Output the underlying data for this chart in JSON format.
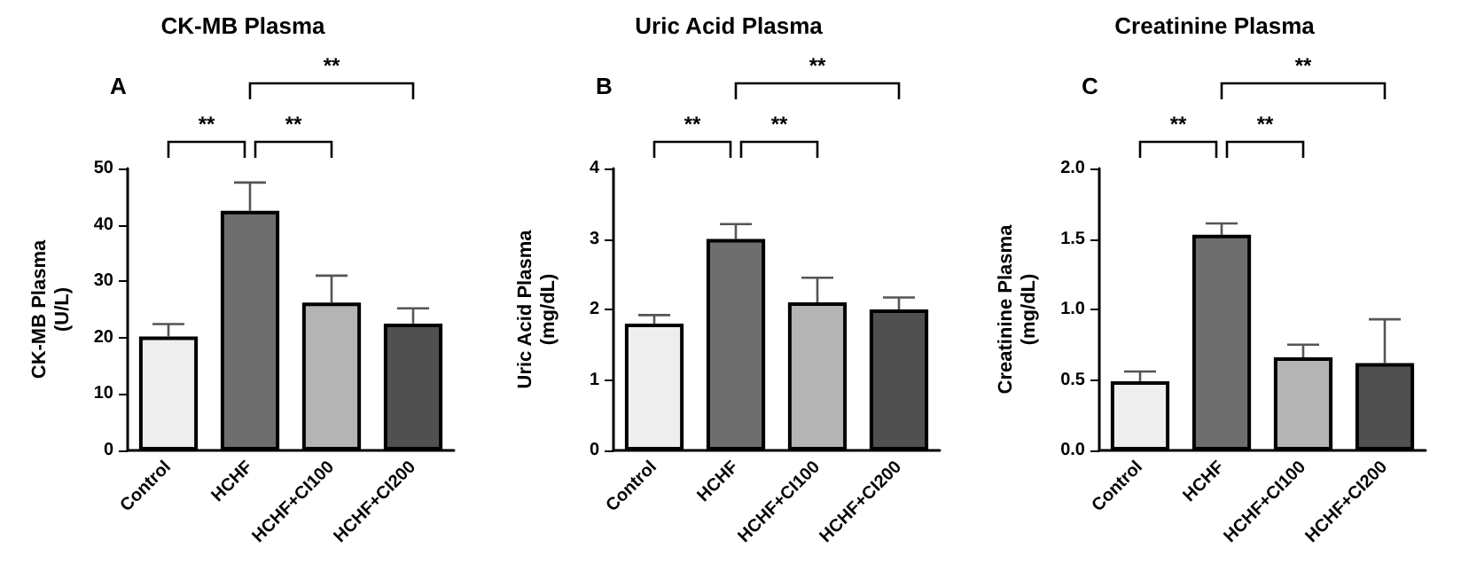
{
  "chart_data": [
    {
      "type": "bar",
      "title": "CK-MB Plasma",
      "ylabel": "CK-MB Plasma (U/L)",
      "annotations": [
        "A",
        "**",
        "**",
        "**"
      ],
      "categories": [
        "Control",
        "HCHF",
        "HCHF+CI100",
        "HCHF+CI200"
      ],
      "values": [
        20.2,
        42.5,
        26.2,
        22.5
      ],
      "colors": [
        "#eeeeee",
        "#6e6e6e",
        "#b4b4b4",
        "#505050"
      ],
      "errors": [
        [
          20.2,
          22.4
        ],
        [
          42.5,
          47.5
        ],
        [
          26.2,
          31.0
        ],
        [
          22.5,
          25.2
        ]
      ],
      "ylim": [
        0,
        50
      ],
      "yticks": [
        0,
        10,
        20,
        30,
        40,
        50
      ],
      "grid": false
    },
    {
      "type": "bar",
      "title": "Uric Acid Plasma",
      "ylabel": "Uric Acid Plasma (mg/dL)",
      "annotations": [
        "B",
        "**",
        "**",
        "**"
      ],
      "categories": [
        "Control",
        "HCHF",
        "HCHF+CI100",
        "HCHF+CI200"
      ],
      "values": [
        1.8,
        3.0,
        2.1,
        2.0
      ],
      "colors": [
        "#eeeeee",
        "#6e6e6e",
        "#b4b4b4",
        "#505050"
      ],
      "errors": [
        [
          1.8,
          1.92
        ],
        [
          3.0,
          3.21
        ],
        [
          2.1,
          2.45
        ],
        [
          2.0,
          2.17
        ]
      ],
      "ylim": [
        0,
        4
      ],
      "yticks": [
        0,
        1,
        2,
        3,
        4
      ],
      "grid": false
    },
    {
      "type": "bar",
      "title": "Creatinine Plasma",
      "ylabel": "Creatinine Plasma (mg/dL)",
      "annotations": [
        "C",
        "**",
        "**",
        "**"
      ],
      "categories": [
        "Control",
        "HCHF",
        "HCHF+CI100",
        "HCHF+CI200"
      ],
      "values": [
        0.49,
        1.53,
        0.66,
        0.62
      ],
      "colors": [
        "#eeeeee",
        "#6e6e6e",
        "#b4b4b4",
        "#505050"
      ],
      "errors": [
        [
          0.49,
          0.56
        ],
        [
          1.53,
          1.61
        ],
        [
          0.66,
          0.75
        ],
        [
          0.62,
          0.93
        ]
      ],
      "ylim": [
        0,
        2.0
      ],
      "yticks": [
        {
          "value": 0,
          "label": "0.0"
        },
        {
          "value": 0.5,
          "label": "0.5"
        },
        {
          "value": 1.0,
          "label": "1.0"
        },
        {
          "value": 1.5,
          "label": "1.5"
        },
        {
          "value": 2.0,
          "label": "2.0"
        }
      ],
      "grid": false
    }
  ]
}
